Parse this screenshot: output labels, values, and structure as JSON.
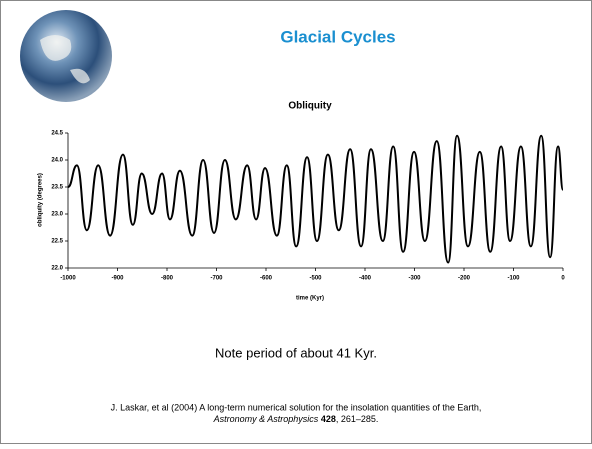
{
  "slide": {
    "title": "Glacial Cycles",
    "note": "Note period of about 41 Kyr.",
    "citation": {
      "line1": "J. Laskar, et al (2004) A long-term numerical solution for the insolation quantities of the Earth,",
      "journal": "Astronomy & Astrophysics",
      "volume": "428",
      "pages": ", 261–285."
    }
  },
  "chart_data": {
    "type": "line",
    "title": "Obliquity",
    "xlabel": "time (Kyr)",
    "ylabel": "obliquity (degrees)",
    "color": "#000000",
    "x": [
      -1000,
      -982,
      -962,
      -939,
      -915,
      -889,
      -869,
      -851,
      -830,
      -810,
      -794,
      -774,
      -749,
      -727,
      -705,
      -683,
      -661,
      -638,
      -620,
      -602,
      -578,
      -558,
      -539,
      -517,
      -497,
      -475,
      -453,
      -430,
      -408,
      -388,
      -364,
      -343,
      -323,
      -301,
      -279,
      -255,
      -232,
      -214,
      -192,
      -168,
      -147,
      -125,
      -107,
      -85,
      -65,
      -44,
      -26,
      -10,
      0
    ],
    "values": [
      23.5,
      23.9,
      22.7,
      23.9,
      22.6,
      24.1,
      22.8,
      23.75,
      23.0,
      23.75,
      22.9,
      23.8,
      22.6,
      24.0,
      22.65,
      24.0,
      22.9,
      23.9,
      22.9,
      23.85,
      22.6,
      23.9,
      22.4,
      24.05,
      22.5,
      24.1,
      22.7,
      24.2,
      22.4,
      24.2,
      22.5,
      24.25,
      22.3,
      24.15,
      22.5,
      24.35,
      22.1,
      24.45,
      22.4,
      24.15,
      22.3,
      24.25,
      22.5,
      24.25,
      22.4,
      24.45,
      22.2,
      24.25,
      23.45
    ],
    "xlim": [
      -1000,
      0
    ],
    "ylim": [
      22.0,
      24.5
    ],
    "xticks": [
      -1000,
      -900,
      -800,
      -700,
      -600,
      -500,
      -400,
      -300,
      -200,
      -100,
      0
    ],
    "yticks": [
      24.5,
      {
        "value": 24,
        "label": "24.0"
      },
      23.5,
      {
        "value": 23,
        "label": "23.0"
      },
      22.5,
      {
        "value": 22,
        "label": "22.0"
      }
    ]
  }
}
